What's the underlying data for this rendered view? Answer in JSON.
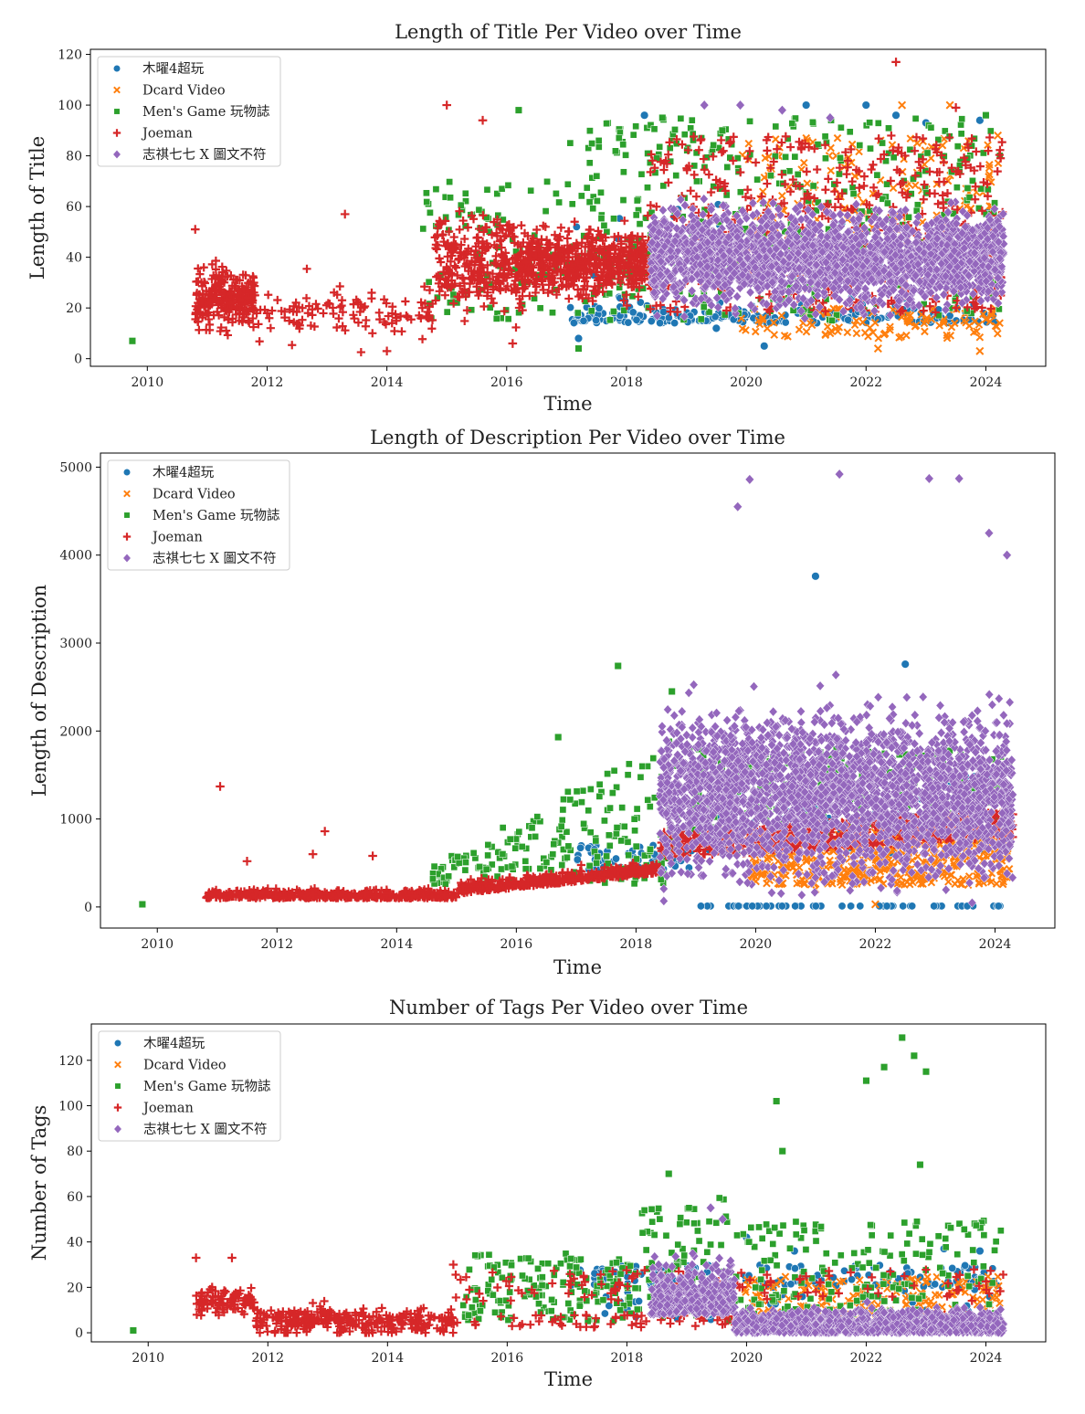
{
  "colors": {
    "thursday": "#1f77b4",
    "dcard": "#ff7f0e",
    "mensgame": "#2ca02c",
    "joeman": "#d62728",
    "chichi": "#9467bd"
  },
  "legend": [
    {
      "name": "木曜4超玩",
      "marker": "circle",
      "color": "#1f77b4"
    },
    {
      "name": "Dcard Video",
      "marker": "x",
      "color": "#ff7f0e"
    },
    {
      "name": "Men's Game 玩物誌",
      "marker": "square",
      "color": "#2ca02c"
    },
    {
      "name": "Joeman",
      "marker": "plus",
      "color": "#d62728"
    },
    {
      "name": "志祺七七 X 圖文不符",
      "marker": "diamond",
      "color": "#9467bd"
    }
  ],
  "chart_data": [
    {
      "type": "scatter",
      "title": "Length of Title Per Video over Time",
      "xlabel": "Time",
      "ylabel": "Length of Title",
      "xlim": [
        2009.05,
        2025.0
      ],
      "ylim": [
        -3,
        122
      ],
      "xticks": [
        "2010",
        "2012",
        "2014",
        "2016",
        "2018",
        "2020",
        "2022",
        "2024"
      ],
      "yticks": [
        "0",
        "20",
        "40",
        "60",
        "80",
        "100",
        "120"
      ],
      "legend_position": "upper-left",
      "series": [
        {
          "name": "木曜4超玩",
          "active": [
            2017.0,
            2024.3
          ],
          "points": [
            [
              2017.2,
              8
            ],
            [
              2018.3,
              96
            ],
            [
              2019.5,
              12
            ],
            [
              2020.3,
              5
            ],
            [
              2021.0,
              100
            ],
            [
              2022.0,
              100
            ],
            [
              2022.5,
              96
            ],
            [
              2023.0,
              93
            ],
            [
              2023.9,
              94
            ]
          ]
        },
        {
          "name": "Dcard Video",
          "active": [
            2019.9,
            2024.3
          ],
          "points": [
            [
              2021.5,
              80
            ],
            [
              2022.2,
              4
            ],
            [
              2022.6,
              100
            ],
            [
              2023.4,
              100
            ],
            [
              2023.9,
              3
            ],
            [
              2024.2,
              88
            ]
          ]
        },
        {
          "name": "Men's Game 玩物誌",
          "active": [
            2014.5,
            2024.3
          ],
          "points": [
            [
              2009.75,
              7
            ],
            [
              2016.2,
              98
            ],
            [
              2017.2,
              4
            ],
            [
              2018.6,
              95
            ],
            [
              2019.6,
              90
            ],
            [
              2024.0,
              96
            ]
          ]
        },
        {
          "name": "Joeman",
          "active": [
            2010.8,
            2024.3
          ],
          "points": [
            [
              2010.8,
              51
            ],
            [
              2013.3,
              57
            ],
            [
              2014.0,
              3
            ],
            [
              2015.0,
              100
            ],
            [
              2015.6,
              94
            ],
            [
              2016.1,
              6
            ],
            [
              2022.5,
              117
            ],
            [
              2023.5,
              99
            ]
          ]
        },
        {
          "name": "志祺七七 X 圖文不符",
          "active": [
            2018.4,
            2024.3
          ],
          "points": [
            [
              2019.3,
              100
            ],
            [
              2019.9,
              100
            ],
            [
              2020.6,
              98
            ],
            [
              2021.4,
              95
            ]
          ]
        }
      ]
    },
    {
      "type": "scatter",
      "title": "Length of Description Per Video over Time",
      "xlabel": "Time",
      "ylabel": "Length of Description",
      "xlim": [
        2009.05,
        2025.0
      ],
      "ylim": [
        -240,
        5160
      ],
      "xticks": [
        "2010",
        "2012",
        "2014",
        "2016",
        "2018",
        "2020",
        "2022",
        "2024"
      ],
      "yticks": [
        "0",
        "1000",
        "2000",
        "3000",
        "4000",
        "5000"
      ],
      "legend_position": "upper-left",
      "series": [
        {
          "name": "木曜4超玩",
          "active": [
            2017.0,
            2024.3
          ],
          "points": [
            [
              2021.0,
              3760
            ],
            [
              2022.5,
              2760
            ]
          ]
        },
        {
          "name": "Dcard Video",
          "active": [
            2019.9,
            2024.3
          ],
          "points": [
            [
              2021.0,
              200
            ],
            [
              2022.0,
              30
            ]
          ]
        },
        {
          "name": "Men's Game 玩物誌",
          "active": [
            2014.5,
            2024.3
          ],
          "points": [
            [
              2009.75,
              30
            ],
            [
              2016.7,
              1930
            ],
            [
              2017.7,
              2740
            ],
            [
              2018.6,
              2450
            ]
          ]
        },
        {
          "name": "Joeman",
          "active": [
            2010.8,
            2024.3
          ],
          "points": [
            [
              2011.05,
              1370
            ],
            [
              2012.8,
              860
            ],
            [
              2012.6,
              600
            ],
            [
              2013.6,
              580
            ],
            [
              2011.5,
              520
            ]
          ]
        },
        {
          "name": "志祺七七 X 圖文不符",
          "active": [
            2018.4,
            2024.3
          ],
          "points": [
            [
              2019.9,
              4860
            ],
            [
              2021.4,
              4920
            ],
            [
              2022.9,
              4870
            ],
            [
              2023.4,
              4870
            ],
            [
              2019.7,
              4550
            ],
            [
              2023.9,
              4250
            ],
            [
              2024.2,
              4000
            ]
          ]
        }
      ]
    },
    {
      "type": "scatter",
      "title": "Number of Tags Per Video over Time",
      "xlabel": "Time",
      "ylabel": "Number of Tags",
      "xlim": [
        2009.05,
        2025.0
      ],
      "ylim": [
        -4,
        136
      ],
      "xticks": [
        "2010",
        "2012",
        "2014",
        "2016",
        "2018",
        "2020",
        "2022",
        "2024"
      ],
      "yticks": [
        "0",
        "20",
        "40",
        "60",
        "80",
        "100",
        "120"
      ],
      "legend_position": "upper-left",
      "series": [
        {
          "name": "木曜4超玩",
          "active": [
            2017.0,
            2024.3
          ],
          "points": [
            [
              2020.0,
              42
            ],
            [
              2020.8,
              36
            ],
            [
              2023.3,
              37
            ],
            [
              2023.9,
              36
            ]
          ]
        },
        {
          "name": "Dcard Video",
          "active": [
            2019.9,
            2024.3
          ],
          "points": [
            [
              2022.5,
              18
            ],
            [
              2024.0,
              20
            ]
          ]
        },
        {
          "name": "Men's Game 玩物誌",
          "active": [
            2014.5,
            2024.3
          ],
          "points": [
            [
              2009.75,
              1
            ],
            [
              2020.5,
              102
            ],
            [
              2020.6,
              80
            ],
            [
              2022.0,
              111
            ],
            [
              2022.3,
              117
            ],
            [
              2022.6,
              130
            ],
            [
              2022.8,
              122
            ],
            [
              2023.0,
              115
            ],
            [
              2022.9,
              74
            ],
            [
              2018.7,
              70
            ]
          ]
        },
        {
          "name": "Joeman",
          "active": [
            2010.8,
            2024.3
          ],
          "points": [
            [
              2010.8,
              33
            ],
            [
              2011.4,
              33
            ],
            [
              2015.1,
              30
            ]
          ]
        },
        {
          "name": "志祺七七 X 圖文不符",
          "active": [
            2018.4,
            2024.3
          ],
          "points": [
            [
              2019.4,
              55
            ],
            [
              2019.6,
              50
            ]
          ]
        }
      ]
    }
  ]
}
